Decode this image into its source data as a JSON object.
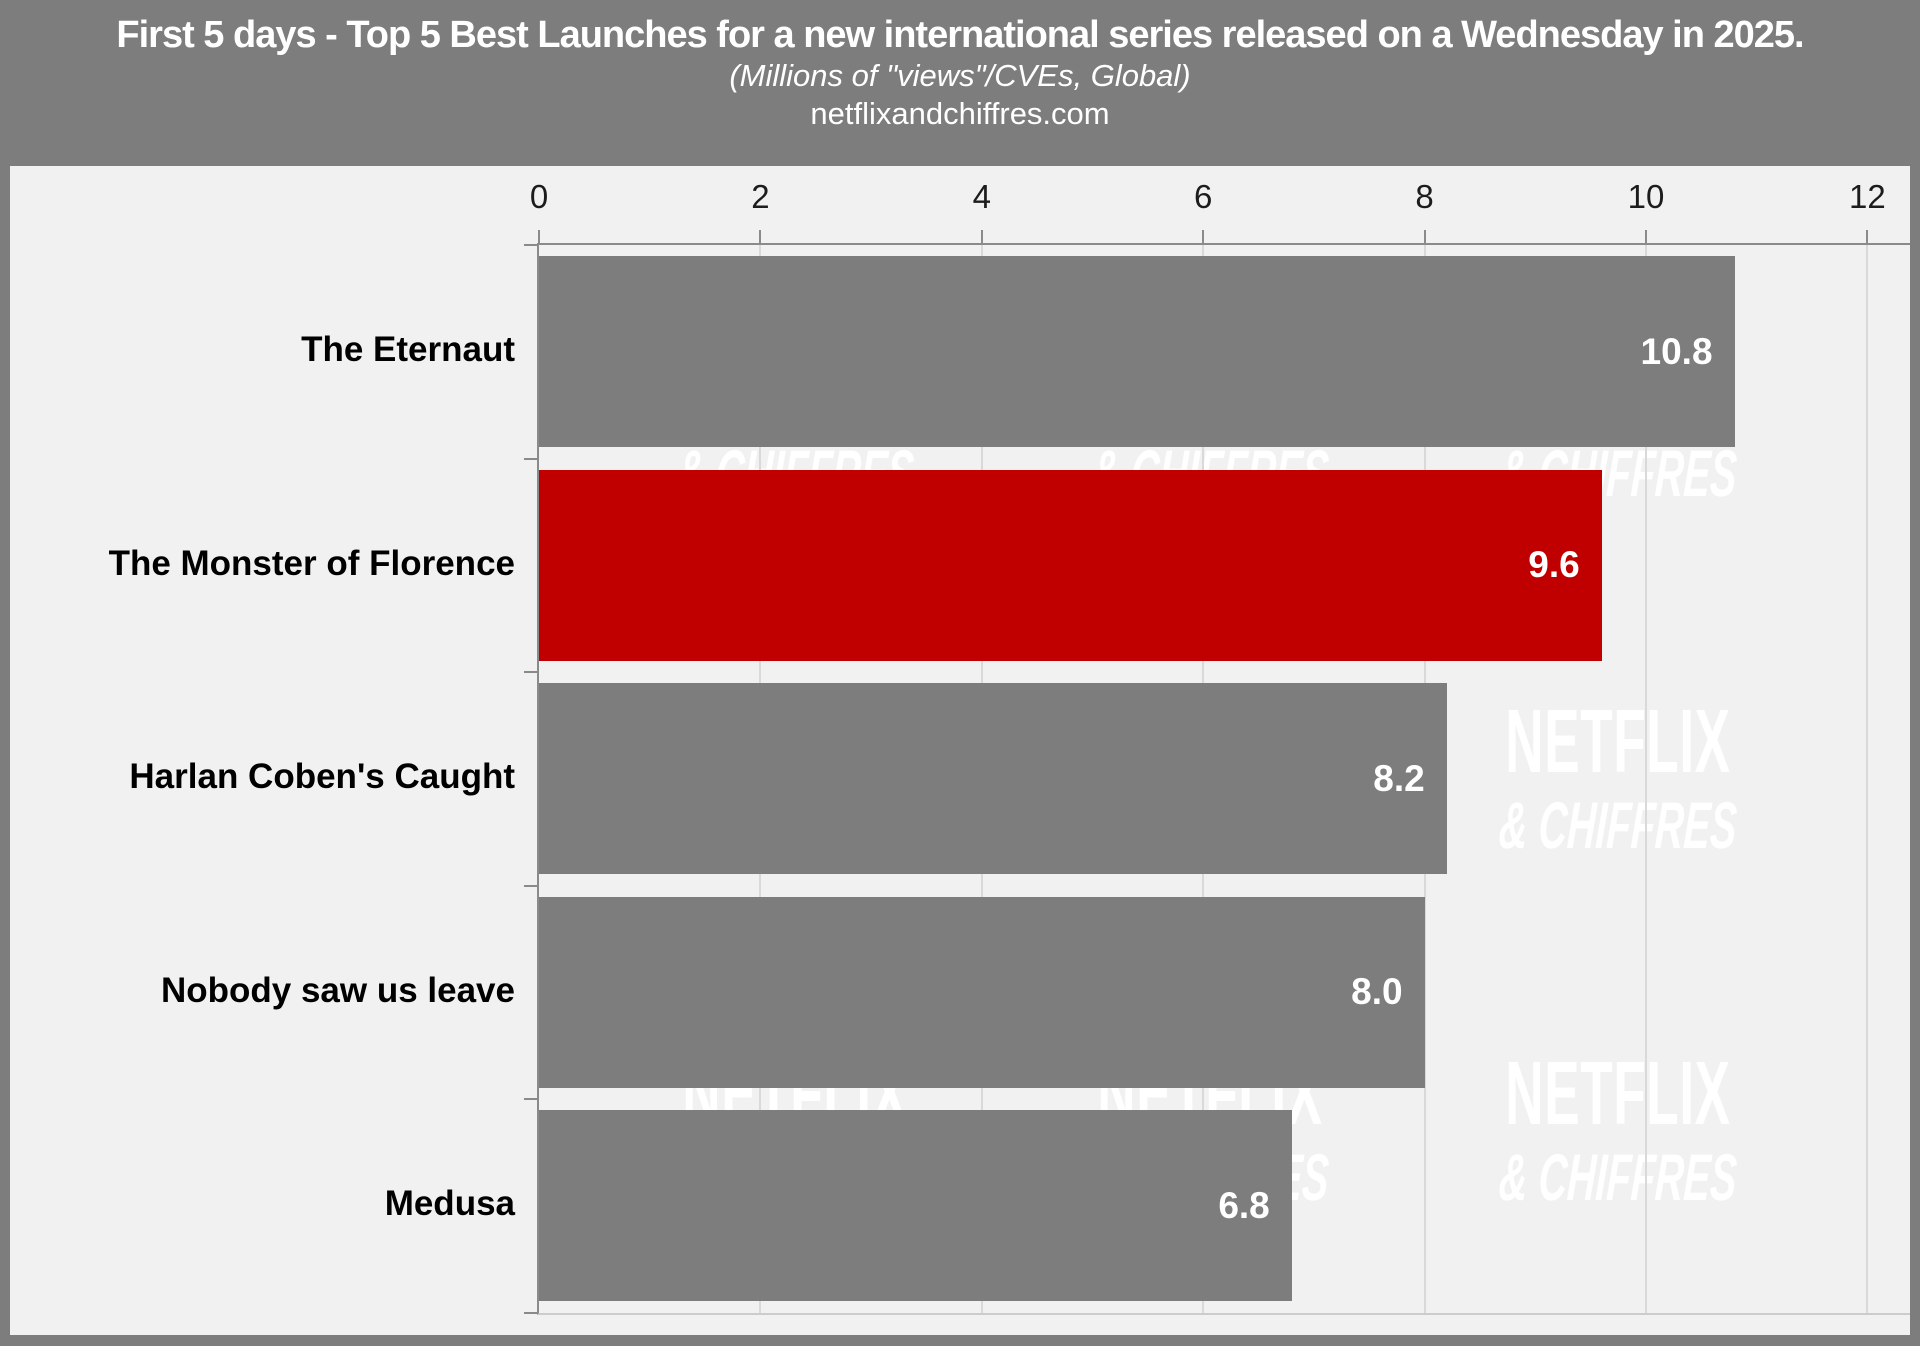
{
  "chart_data": {
    "type": "bar",
    "orientation": "horizontal",
    "title": "First 5 days - Top 5 Best Launches for a new international series released on a Wednesday in 2025.",
    "subtitle": "(Millions of \"views\"/CVEs, Global)",
    "source": "netflixandchiffres.com",
    "categories": [
      "The Eternaut",
      "The Monster of Florence",
      "Harlan Coben's Caught",
      "Nobody saw us leave",
      "Medusa"
    ],
    "values": [
      10.8,
      9.6,
      8.2,
      8.0,
      6.8
    ],
    "value_labels": [
      "10.8",
      "9.6",
      "8.2",
      "8.0",
      "6.8"
    ],
    "highlight_index": 1,
    "highlighted_category": "The Monster of Florence",
    "x_ticks": [
      0,
      2,
      4,
      6,
      8,
      10,
      12
    ],
    "xlim": [
      0,
      12
    ],
    "axis_position": "top",
    "grid": true,
    "legend": false,
    "bar_colors": {
      "default": "#7d7d7d",
      "highlight": "#c00000"
    },
    "watermark": {
      "line1": "NETFLIX",
      "line2": "& CHIFFRES",
      "color": "#ffffff"
    }
  },
  "colors": {
    "frame": "#7d7d7d",
    "plot_background": "#f1f1f1",
    "gridline": "#d9d9d9",
    "axis": "#8a8a8a",
    "tick_label": "#1c1c1c",
    "category_label": "#000000",
    "value_label": "#ffffff",
    "header_text": "#ffffff"
  }
}
